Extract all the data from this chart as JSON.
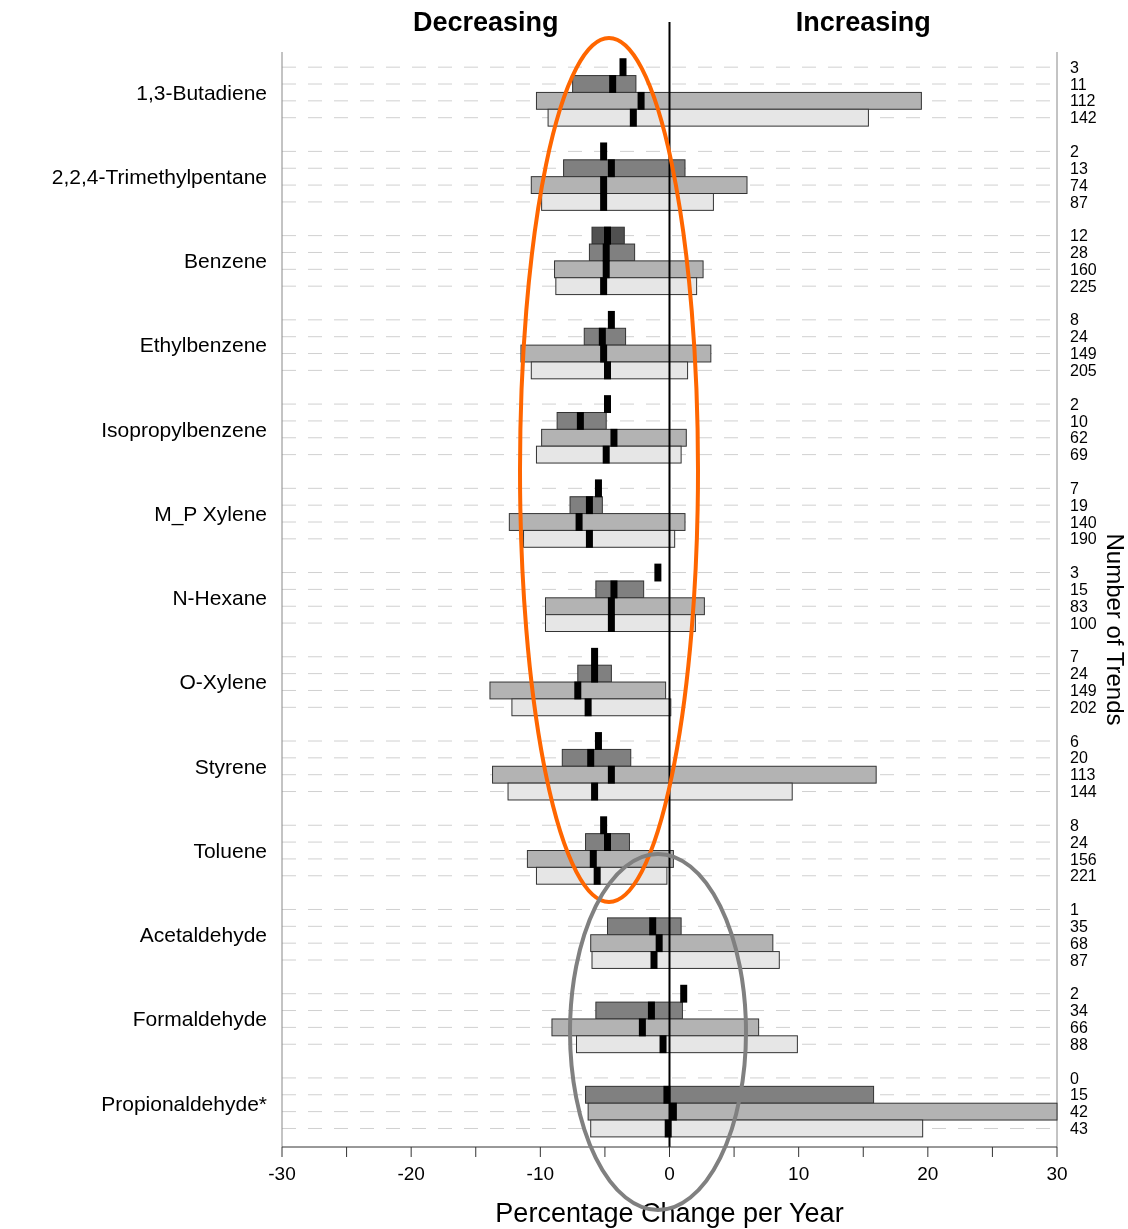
{
  "chart_data": {
    "type": "bar",
    "orientation": "horizontal",
    "categories": [
      "1,3-Butadiene",
      "2,2,4-Trimethylpentane",
      "Benzene",
      "Ethylbenzene",
      "Isopropylbenzene",
      "M_P Xylene",
      "N-Hexane",
      "O-Xylene",
      "Styrene",
      "Toluene",
      "Acetaldehyde",
      "Formaldehyde",
      "Propionaldehyde*"
    ],
    "xlabel": "Percentage Change per Year",
    "y2label": "Number of Trends",
    "annotations": [
      "Decreasing",
      "Increasing",
      "3",
      "11",
      "112",
      "142",
      "2",
      "13",
      "74",
      "87",
      "12",
      "28",
      "160",
      "225",
      "8",
      "24",
      "149",
      "205",
      "2",
      "10",
      "62",
      "69",
      "7",
      "19",
      "140",
      "190",
      "3",
      "15",
      "83",
      "100",
      "7",
      "24",
      "149",
      "202",
      "6",
      "20",
      "113",
      "144",
      "8",
      "24",
      "156",
      "221",
      "1",
      "35",
      "68",
      "87",
      "2",
      "34",
      "66",
      "88",
      "0",
      "15",
      "42",
      "43"
    ],
    "xlim": [
      -30,
      30
    ],
    "xticks": [
      -30,
      {
        "value": -25,
        "label": null
      },
      -20,
      {
        "value": -15,
        "label": null
      },
      -10,
      {
        "value": -5,
        "label": null
      },
      0,
      {
        "value": 5,
        "label": null
      },
      10,
      {
        "value": 15,
        "label": null
      },
      20,
      {
        "value": 25,
        "label": null
      },
      30
    ],
    "grid": "y",
    "marker": "square",
    "ref_lines": [
      {
        "axis": "x",
        "value": 0,
        "color": "#000000"
      }
    ],
    "series": [
      {
        "color": "#505050",
        "base": [
          null,
          null,
          -6.0,
          null,
          null,
          null,
          null,
          null,
          null,
          null,
          null,
          null,
          null
        ],
        "values": [
          null,
          null,
          2.5,
          null,
          null,
          null,
          null,
          null,
          null,
          null,
          null,
          null,
          null
        ]
      },
      {
        "color": "#808080",
        "base": [
          -7.5,
          -8.2,
          -6.2,
          -6.6,
          -8.7,
          -7.7,
          -5.7,
          -7.1,
          -8.3,
          -6.5,
          -4.8,
          -5.7,
          -6.5
        ],
        "values": [
          4.9,
          9.4,
          3.5,
          3.2,
          3.8,
          2.5,
          3.7,
          2.6,
          5.3,
          3.4,
          5.7,
          6.7,
          22.3
        ]
      },
      {
        "color": "#b3b3b3",
        "base": [
          -10.3,
          -10.7,
          -8.9,
          -11.5,
          -9.9,
          -12.4,
          -9.6,
          -13.9,
          -13.7,
          -11.0,
          -6.1,
          -9.1,
          -6.3
        ],
        "values": [
          29.8,
          16.7,
          11.5,
          14.7,
          11.2,
          13.6,
          12.3,
          13.6,
          29.7,
          11.3,
          14.1,
          16.0,
          36.3
        ]
      },
      {
        "color": "#e6e6e6",
        "base": [
          -9.4,
          -9.9,
          -8.8,
          -10.7,
          -10.3,
          -11.3,
          -9.6,
          -12.2,
          -12.5,
          -10.3,
          -6.0,
          -7.2,
          -6.1
        ],
        "values": [
          24.8,
          13.3,
          10.9,
          12.1,
          11.2,
          11.7,
          11.6,
          12.3,
          22.0,
          10.1,
          14.5,
          17.1,
          25.7
        ]
      },
      {
        "type": "scatter",
        "color": "#000000",
        "values": [
          -3.6,
          -5.1,
          -4.8,
          -4.5,
          -4.8,
          -5.5,
          -0.9,
          -5.8,
          -5.5,
          -5.1,
          null,
          1.1,
          null
        ]
      },
      {
        "type": "scatter",
        "color": "#000000",
        "values": [
          -4.4,
          -4.5,
          -4.9,
          -5.2,
          -6.9,
          -6.2,
          -4.3,
          -5.8,
          -6.1,
          -4.8,
          -1.3,
          -1.4,
          -0.2
        ]
      },
      {
        "type": "scatter",
        "color": "#000000",
        "values": [
          -2.2,
          -5.1,
          -4.9,
          -5.1,
          -4.3,
          -7.0,
          -4.5,
          -7.1,
          -4.5,
          -5.9,
          -0.8,
          -2.1,
          0.3
        ]
      },
      {
        "type": "scatter",
        "color": "#000000",
        "values": [
          -2.8,
          -5.1,
          -5.1,
          -4.8,
          -4.9,
          -6.2,
          -4.5,
          -6.3,
          -5.8,
          -5.6,
          -1.2,
          -0.5,
          -0.1
        ]
      }
    ]
  }
}
